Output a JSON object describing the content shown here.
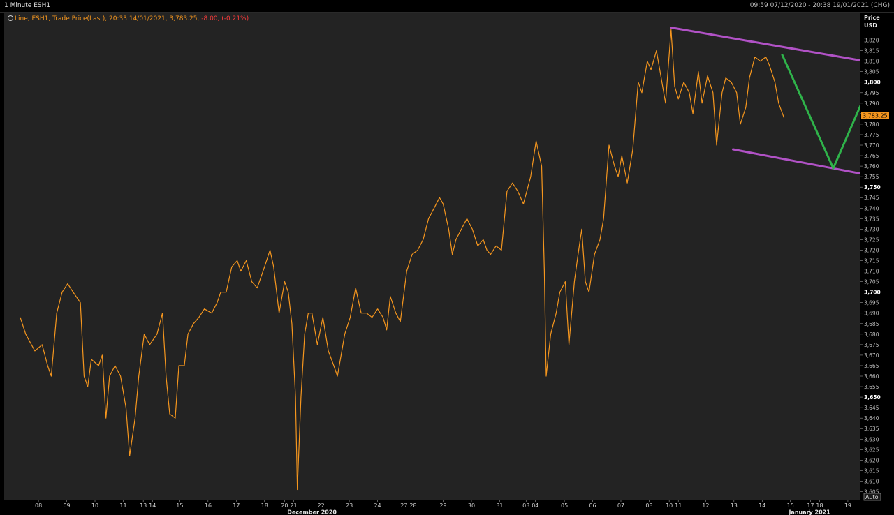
{
  "header": {
    "title": "1 Minute ESH1",
    "range": "09:59 07/12/2020 - 20:38 19/01/2021 (CHG)"
  },
  "legend": {
    "prefix": "Line, ESH1, Trade Price(Last), 20:33 14/01/2021, 3,783.25, ",
    "change": "-8.00, (-0.21%)"
  },
  "axis": {
    "price_label": "Price",
    "currency_label": "USD",
    "last_value": "3,783.25",
    "auto_button": "Auto",
    "month_labels": [
      {
        "label": "December 2020",
        "x": 16
      },
      {
        "label": "January 2021",
        "x": 43.3
      }
    ]
  },
  "colors": {
    "background": "#232323",
    "line": "#f5961e",
    "channel": "#b152c6",
    "projection": "#2fb34a",
    "negative": "#ff3b3b"
  },
  "chart_data": {
    "type": "line",
    "title": "1 Minute ESH1",
    "ylabel": "Price USD",
    "ylim": [
      3600,
      3830
    ],
    "x_domain": [
      0,
      49
    ],
    "x_ticks": [
      {
        "label": "08",
        "x": 1
      },
      {
        "label": "09",
        "x": 2.55
      },
      {
        "label": "10",
        "x": 4.1
      },
      {
        "label": "11",
        "x": 5.65
      },
      {
        "label": "13",
        "x": 6.75
      },
      {
        "label": "14",
        "x": 7.25
      },
      {
        "label": "15",
        "x": 8.75
      },
      {
        "label": "16",
        "x": 10.3
      },
      {
        "label": "17",
        "x": 11.85
      },
      {
        "label": "18",
        "x": 13.4
      },
      {
        "label": "20",
        "x": 14.5
      },
      {
        "label": "21",
        "x": 15
      },
      {
        "label": "22",
        "x": 16.5
      },
      {
        "label": "23",
        "x": 18.05
      },
      {
        "label": "24",
        "x": 19.6
      },
      {
        "label": "27",
        "x": 21.05
      },
      {
        "label": "28",
        "x": 21.55
      },
      {
        "label": "29",
        "x": 23.2
      },
      {
        "label": "30",
        "x": 24.75
      },
      {
        "label": "31",
        "x": 26.3
      },
      {
        "label": "03",
        "x": 27.75
      },
      {
        "label": "04",
        "x": 28.25
      },
      {
        "label": "05",
        "x": 29.85
      },
      {
        "label": "06",
        "x": 31.4
      },
      {
        "label": "07",
        "x": 32.95
      },
      {
        "label": "08",
        "x": 34.5
      },
      {
        "label": "10",
        "x": 35.6
      },
      {
        "label": "11",
        "x": 36.1
      },
      {
        "label": "12",
        "x": 37.6
      },
      {
        "label": "13",
        "x": 39.15
      },
      {
        "label": "14",
        "x": 40.7
      },
      {
        "label": "15",
        "x": 42.25
      },
      {
        "label": "17",
        "x": 43.35
      },
      {
        "label": "18",
        "x": 43.85
      },
      {
        "label": "19",
        "x": 45.4
      }
    ],
    "y_ticks": [
      3605,
      3610,
      3615,
      3620,
      3625,
      3630,
      3635,
      3640,
      3645,
      3650,
      3655,
      3660,
      3665,
      3670,
      3675,
      3680,
      3685,
      3690,
      3695,
      3700,
      3705,
      3710,
      3715,
      3720,
      3725,
      3730,
      3735,
      3740,
      3745,
      3750,
      3755,
      3760,
      3765,
      3770,
      3775,
      3780,
      3785,
      3790,
      3795,
      3800,
      3805,
      3810,
      3815,
      3820
    ],
    "y_ticks_bold": [
      3650,
      3700,
      3750,
      3800
    ],
    "series": [
      {
        "values": [
          [
            0,
            3688
          ],
          [
            0.3,
            3680
          ],
          [
            0.8,
            3672
          ],
          [
            1.2,
            3675
          ],
          [
            1.5,
            3665
          ],
          [
            1.7,
            3660
          ],
          [
            2.0,
            3690
          ],
          [
            2.3,
            3700
          ],
          [
            2.6,
            3704
          ],
          [
            2.9,
            3700
          ],
          [
            3.3,
            3695
          ],
          [
            3.5,
            3660
          ],
          [
            3.7,
            3655
          ],
          [
            3.9,
            3668
          ],
          [
            4.3,
            3665
          ],
          [
            4.5,
            3670
          ],
          [
            4.7,
            3640
          ],
          [
            4.9,
            3660
          ],
          [
            5.2,
            3665
          ],
          [
            5.5,
            3660
          ],
          [
            5.8,
            3645
          ],
          [
            6.0,
            3622
          ],
          [
            6.3,
            3640
          ],
          [
            6.5,
            3660
          ],
          [
            6.8,
            3680
          ],
          [
            7.1,
            3675
          ],
          [
            7.5,
            3680
          ],
          [
            7.8,
            3690
          ],
          [
            8.0,
            3660
          ],
          [
            8.2,
            3642
          ],
          [
            8.5,
            3640
          ],
          [
            8.7,
            3665
          ],
          [
            9.0,
            3665
          ],
          [
            9.2,
            3680
          ],
          [
            9.5,
            3685
          ],
          [
            9.8,
            3688
          ],
          [
            10.1,
            3692
          ],
          [
            10.5,
            3690
          ],
          [
            10.8,
            3695
          ],
          [
            11.0,
            3700
          ],
          [
            11.3,
            3700
          ],
          [
            11.6,
            3712
          ],
          [
            11.9,
            3715
          ],
          [
            12.1,
            3710
          ],
          [
            12.4,
            3715
          ],
          [
            12.7,
            3705
          ],
          [
            13.0,
            3702
          ],
          [
            13.4,
            3712
          ],
          [
            13.7,
            3720
          ],
          [
            13.9,
            3712
          ],
          [
            14.2,
            3690
          ],
          [
            14.5,
            3705
          ],
          [
            14.7,
            3700
          ],
          [
            14.9,
            3685
          ],
          [
            15.1,
            3650
          ],
          [
            15.2,
            3606
          ],
          [
            15.4,
            3650
          ],
          [
            15.6,
            3680
          ],
          [
            15.8,
            3690
          ],
          [
            16.0,
            3690
          ],
          [
            16.3,
            3675
          ],
          [
            16.6,
            3688
          ],
          [
            16.9,
            3672
          ],
          [
            17.2,
            3665
          ],
          [
            17.4,
            3660
          ],
          [
            17.6,
            3670
          ],
          [
            17.8,
            3680
          ],
          [
            18.1,
            3688
          ],
          [
            18.4,
            3702
          ],
          [
            18.7,
            3690
          ],
          [
            19.0,
            3690
          ],
          [
            19.3,
            3688
          ],
          [
            19.6,
            3692
          ],
          [
            19.9,
            3688
          ],
          [
            20.1,
            3682
          ],
          [
            20.3,
            3698
          ],
          [
            20.6,
            3690
          ],
          [
            20.85,
            3686
          ],
          [
            21.2,
            3710
          ],
          [
            21.5,
            3718
          ],
          [
            21.8,
            3720
          ],
          [
            22.1,
            3725
          ],
          [
            22.4,
            3735
          ],
          [
            22.7,
            3740
          ],
          [
            23.0,
            3745
          ],
          [
            23.2,
            3742
          ],
          [
            23.5,
            3730
          ],
          [
            23.7,
            3718
          ],
          [
            23.9,
            3725
          ],
          [
            24.2,
            3730
          ],
          [
            24.5,
            3735
          ],
          [
            24.8,
            3730
          ],
          [
            25.1,
            3722
          ],
          [
            25.4,
            3725
          ],
          [
            25.6,
            3720
          ],
          [
            25.8,
            3718
          ],
          [
            26.1,
            3722
          ],
          [
            26.4,
            3720
          ],
          [
            26.7,
            3748
          ],
          [
            27.0,
            3752
          ],
          [
            27.3,
            3748
          ],
          [
            27.6,
            3742
          ],
          [
            28.0,
            3755
          ],
          [
            28.3,
            3772
          ],
          [
            28.6,
            3760
          ],
          [
            28.75,
            3710
          ],
          [
            28.85,
            3660
          ],
          [
            29.1,
            3680
          ],
          [
            29.4,
            3690
          ],
          [
            29.6,
            3700
          ],
          [
            29.9,
            3705
          ],
          [
            30.1,
            3675
          ],
          [
            30.4,
            3705
          ],
          [
            30.6,
            3718
          ],
          [
            30.8,
            3730
          ],
          [
            31.0,
            3705
          ],
          [
            31.2,
            3700
          ],
          [
            31.5,
            3718
          ],
          [
            31.8,
            3725
          ],
          [
            32.0,
            3735
          ],
          [
            32.3,
            3770
          ],
          [
            32.6,
            3760
          ],
          [
            32.8,
            3755
          ],
          [
            33.0,
            3765
          ],
          [
            33.3,
            3752
          ],
          [
            33.6,
            3768
          ],
          [
            33.9,
            3800
          ],
          [
            34.1,
            3795
          ],
          [
            34.4,
            3810
          ],
          [
            34.6,
            3806
          ],
          [
            34.9,
            3815
          ],
          [
            35.1,
            3805
          ],
          [
            35.4,
            3790
          ],
          [
            35.7,
            3825
          ],
          [
            35.9,
            3798
          ],
          [
            36.1,
            3792
          ],
          [
            36.4,
            3800
          ],
          [
            36.7,
            3795
          ],
          [
            36.9,
            3785
          ],
          [
            37.2,
            3805
          ],
          [
            37.4,
            3790
          ],
          [
            37.7,
            3803
          ],
          [
            38.0,
            3795
          ],
          [
            38.2,
            3770
          ],
          [
            38.5,
            3795
          ],
          [
            38.7,
            3802
          ],
          [
            39.0,
            3800
          ],
          [
            39.3,
            3795
          ],
          [
            39.5,
            3780
          ],
          [
            39.8,
            3788
          ],
          [
            40.0,
            3802
          ],
          [
            40.3,
            3812
          ],
          [
            40.6,
            3810
          ],
          [
            40.9,
            3812
          ],
          [
            41.1,
            3808
          ],
          [
            41.4,
            3800
          ],
          [
            41.6,
            3790
          ],
          [
            41.9,
            3783
          ]
        ]
      }
    ],
    "annotations": [
      {
        "name": "channel-upper",
        "color": "#b152c6",
        "from": [
          35.7,
          3826
        ],
        "to": [
          47,
          3809
        ]
      },
      {
        "name": "channel-lower",
        "color": "#b152c6",
        "from": [
          39.1,
          3768
        ],
        "to": [
          47.6,
          3754
        ]
      },
      {
        "name": "projection-down",
        "color": "#2fb34a",
        "from": [
          41.8,
          3813
        ],
        "to": [
          44.6,
          3759
        ]
      },
      {
        "name": "projection-up",
        "color": "#2fb34a",
        "from": [
          44.6,
          3759
        ],
        "to": [
          47.8,
          3823
        ]
      }
    ]
  }
}
